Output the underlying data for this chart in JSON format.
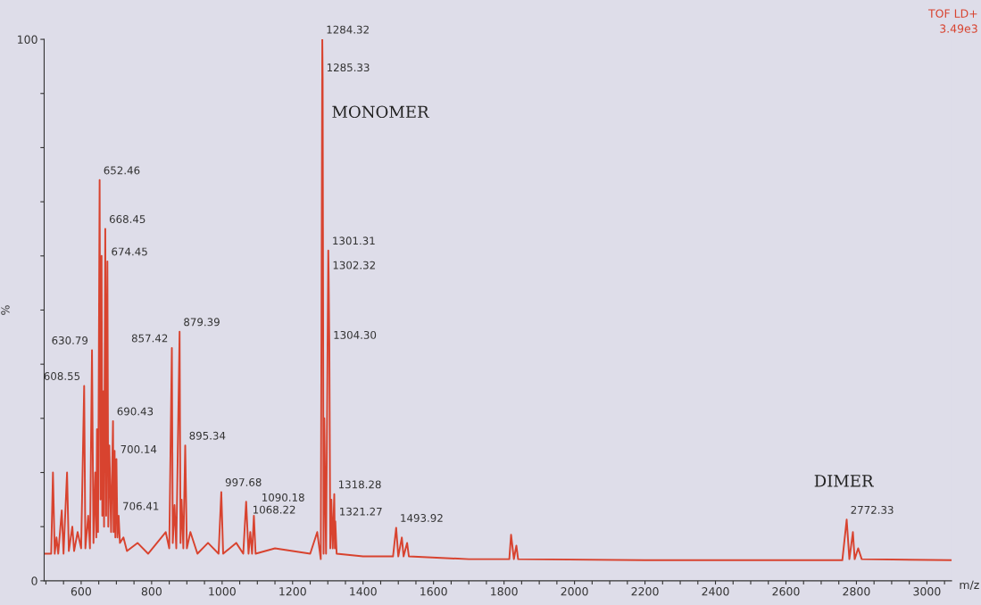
{
  "chart_data": {
    "type": "line",
    "xlabel": "m/z",
    "ylabel": "%",
    "xlim": [
      495,
      3070
    ],
    "ylim": [
      0,
      100
    ],
    "xticks": [
      {
        "value": 500,
        "label": null
      },
      {
        "value": 550,
        "label": null
      },
      600,
      {
        "value": 650,
        "label": null
      },
      {
        "value": 700,
        "label": null
      },
      {
        "value": 750,
        "label": null
      },
      800,
      {
        "value": 850,
        "label": null
      },
      {
        "value": 900,
        "label": null
      },
      {
        "value": 950,
        "label": null
      },
      1000,
      {
        "value": 1050,
        "label": null
      },
      {
        "value": 1100,
        "label": null
      },
      {
        "value": 1150,
        "label": null
      },
      1200,
      {
        "value": 1250,
        "label": null
      },
      {
        "value": 1300,
        "label": null
      },
      {
        "value": 1350,
        "label": null
      },
      1400,
      {
        "value": 1450,
        "label": null
      },
      {
        "value": 1500,
        "label": null
      },
      {
        "value": 1550,
        "label": null
      },
      1600,
      {
        "value": 1650,
        "label": null
      },
      {
        "value": 1700,
        "label": null
      },
      {
        "value": 1750,
        "label": null
      },
      1800,
      {
        "value": 1850,
        "label": null
      },
      {
        "value": 1900,
        "label": null
      },
      {
        "value": 1950,
        "label": null
      },
      2000,
      {
        "value": 2050,
        "label": null
      },
      {
        "value": 2100,
        "label": null
      },
      {
        "value": 2150,
        "label": null
      },
      2200,
      {
        "value": 2250,
        "label": null
      },
      {
        "value": 2300,
        "label": null
      },
      {
        "value": 2350,
        "label": null
      },
      2400,
      {
        "value": 2450,
        "label": null
      },
      {
        "value": 2500,
        "label": null
      },
      {
        "value": 2550,
        "label": null
      },
      2600,
      {
        "value": 2650,
        "label": null
      },
      {
        "value": 2700,
        "label": null
      },
      {
        "value": 2750,
        "label": null
      },
      2800,
      {
        "value": 2850,
        "label": null
      },
      {
        "value": 2900,
        "label": null
      },
      {
        "value": 2950,
        "label": null
      },
      3000,
      {
        "value": 3050,
        "label": null
      }
    ],
    "yticks": [
      0,
      {
        "value": 10,
        "label": null
      },
      {
        "value": 20,
        "label": null
      },
      {
        "value": 30,
        "label": null
      },
      {
        "value": 40,
        "label": null
      },
      {
        "value": 50,
        "label": null
      },
      {
        "value": 60,
        "label": null
      },
      {
        "value": 70,
        "label": null
      },
      {
        "value": 80,
        "label": null
      },
      {
        "value": 90,
        "label": null
      },
      100
    ],
    "grid": false,
    "marker": "none",
    "line_style": "solid",
    "series": [
      {
        "color": "#d8432f",
        "x": [
          495,
          515,
          520,
          525,
          530,
          535,
          545,
          550,
          560,
          565,
          575,
          580,
          590,
          600,
          608.55,
          612,
          620,
          625,
          630.79,
          635,
          640,
          643,
          645,
          648,
          652.46,
          655,
          658,
          660,
          663,
          665,
          668.45,
          671,
          674.45,
          677,
          680,
          685,
          690.43,
          692,
          695,
          697,
          700.14,
          703,
          706.41,
          710,
          720,
          730,
          760,
          790,
          840,
          850,
          857.42,
          860,
          865,
          870,
          879.39,
          882,
          885,
          890,
          895.34,
          900,
          910,
          930,
          960,
          990,
          997.68,
          1003,
          1040,
          1060,
          1068.22,
          1075,
          1080,
          1085,
          1090.18,
          1095,
          1150,
          1250,
          1270,
          1280,
          1284.32,
          1285.33,
          1288,
          1290,
          1295,
          1301.31,
          1302.32,
          1304.3,
          1307,
          1310,
          1314,
          1318.28,
          1320,
          1321.27,
          1325,
          1400,
          1485,
          1493.92,
          1500,
          1510,
          1515,
          1525,
          1530,
          1700,
          1815,
          1820,
          1828,
          1835,
          1840,
          2200,
          2760,
          2772.33,
          2780,
          2790,
          2795,
          2805,
          2815,
          3070
        ],
        "values": [
          5,
          5,
          20,
          5,
          8,
          5,
          13,
          5,
          20,
          5.5,
          10,
          5.5,
          9,
          6,
          36,
          6,
          12,
          6,
          42.6,
          7,
          20,
          8,
          28,
          9,
          74,
          15,
          60,
          12,
          35,
          10,
          65,
          12,
          59,
          10,
          25,
          9,
          29.5,
          9,
          24,
          8,
          22.5,
          8,
          12,
          7,
          8,
          5.5,
          7,
          5,
          9,
          6,
          43,
          7,
          14,
          6,
          46,
          7,
          15,
          6,
          25,
          6,
          9,
          5,
          7,
          5,
          16.4,
          5,
          7,
          5,
          14.6,
          5,
          9,
          5,
          12,
          5,
          6,
          5,
          9,
          4,
          100,
          93,
          5,
          30,
          5,
          61,
          56.5,
          43.6,
          6,
          15,
          6,
          16,
          6,
          11,
          5,
          4.5,
          4.5,
          9.8,
          4.5,
          8,
          4.5,
          7,
          4.5,
          4,
          4,
          8.5,
          4,
          6.5,
          4,
          3.8,
          3.8,
          11.3,
          4,
          9,
          4,
          6,
          4,
          3.8
        ]
      }
    ],
    "annotations": [
      {
        "text": "1284.32",
        "x": 1284.32,
        "y": 100
      },
      {
        "text": "1285.33",
        "x": 1285.33,
        "y": 93
      },
      {
        "text": "652.46",
        "x": 652.46,
        "y": 74
      },
      {
        "text": "668.45",
        "x": 668.45,
        "y": 65
      },
      {
        "text": "1301.31",
        "x": 1301.31,
        "y": 61
      },
      {
        "text": "674.45",
        "x": 674.45,
        "y": 59
      },
      {
        "text": "1302.32",
        "x": 1302.32,
        "y": 56.5
      },
      {
        "text": "879.39",
        "x": 879.39,
        "y": 46
      },
      {
        "text": "1304.30",
        "x": 1304.3,
        "y": 43.6
      },
      {
        "text": "630.79",
        "x": 630.79,
        "y": 42.6
      },
      {
        "text": "857.42",
        "x": 857.42,
        "y": 43
      },
      {
        "text": "608.55",
        "x": 608.55,
        "y": 36
      },
      {
        "text": "690.43",
        "x": 690.43,
        "y": 29.5
      },
      {
        "text": "895.34",
        "x": 895.34,
        "y": 25
      },
      {
        "text": "700.14",
        "x": 700.14,
        "y": 22.5
      },
      {
        "text": "997.68",
        "x": 997.68,
        "y": 16.4
      },
      {
        "text": "1318.28",
        "x": 1318.28,
        "y": 16
      },
      {
        "text": "1068.22",
        "x": 1068.22,
        "y": 14.6
      },
      {
        "text": "706.41",
        "x": 706.41,
        "y": 12
      },
      {
        "text": "1090.18",
        "x": 1090.18,
        "y": 12
      },
      {
        "text": "2772.33",
        "x": 2772.33,
        "y": 11.3
      },
      {
        "text": "1321.27",
        "x": 1321.27,
        "y": 11
      },
      {
        "text": "1493.92",
        "x": 1493.92,
        "y": 9.8
      },
      "MONOMER",
      "DIMER",
      "TOF LD+",
      "3.49e3"
    ]
  }
}
